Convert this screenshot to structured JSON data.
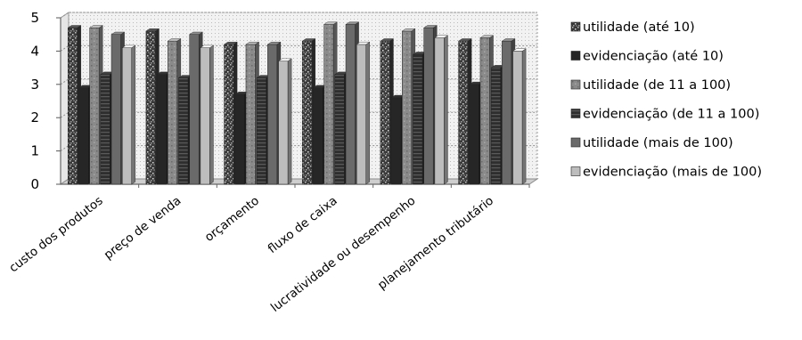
{
  "chart_data": {
    "type": "bar",
    "title": "",
    "xlabel": "",
    "ylabel": "",
    "ylim": [
      0,
      5
    ],
    "yticks": [
      "0",
      "1",
      "2",
      "3",
      "4",
      "5"
    ],
    "grid": true,
    "legend_position": "right",
    "style": "3d-clustered-column",
    "categories": [
      "custo dos produtos",
      "preço de venda",
      "orçamento",
      "fluxo de caixa",
      "lucratividade ou desempenho",
      "planejamento tributário"
    ],
    "series": [
      {
        "name": "utilidade (até 10)",
        "color": "#3f3f3f",
        "pattern": "speckle-dark",
        "values": [
          4.7,
          4.6,
          4.2,
          4.3,
          4.3,
          4.3
        ]
      },
      {
        "name": "evidenciação (até 10)",
        "color": "#262626",
        "pattern": "solid",
        "values": [
          2.9,
          3.3,
          2.7,
          2.9,
          2.6,
          3.0
        ]
      },
      {
        "name": "utilidade (de 11 a 100)",
        "color": "#8c8c8c",
        "pattern": "speckle-light",
        "values": [
          4.7,
          4.3,
          4.2,
          4.8,
          4.6,
          4.4
        ]
      },
      {
        "name": "evidenciação (de 11 a 100)",
        "color": "#303030",
        "pattern": "stripes",
        "values": [
          3.3,
          3.2,
          3.2,
          3.3,
          3.9,
          3.5
        ]
      },
      {
        "name": "utilidade (mais de 100)",
        "color": "#6a6a6a",
        "pattern": "solid",
        "values": [
          4.5,
          4.5,
          4.2,
          4.8,
          4.7,
          4.3
        ]
      },
      {
        "name": "evidenciação (mais de 100)",
        "color": "#bdbdbd",
        "pattern": "solid",
        "values": [
          4.1,
          4.1,
          3.7,
          4.2,
          4.4,
          4.0
        ]
      }
    ]
  }
}
